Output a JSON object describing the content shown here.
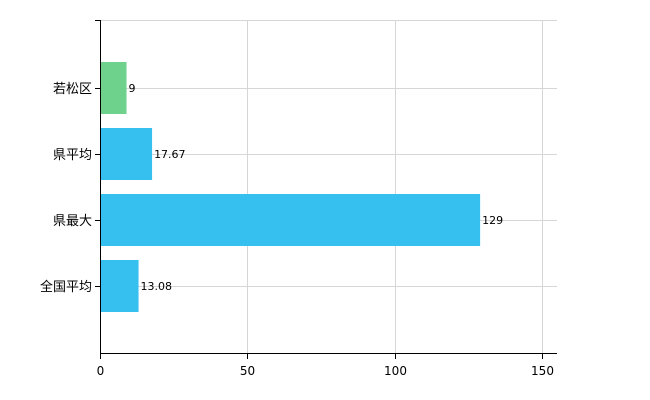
{
  "chart_data": {
    "type": "bar",
    "orientation": "horizontal",
    "categories": [
      "若松区",
      "県平均",
      "県最大",
      "全国平均"
    ],
    "values": [
      9,
      17.67,
      129,
      13.08
    ],
    "value_labels": [
      "9",
      "17.67",
      "129",
      "13.08"
    ],
    "bar_colors": [
      "#6fd28c",
      "#35c0f0",
      "#35c0f0",
      "#35c0f0"
    ],
    "x_ticks": [
      0,
      50,
      100,
      150
    ],
    "x_tick_labels": [
      "0",
      "50",
      "100",
      "150"
    ],
    "xlim": [
      0,
      150
    ],
    "grid": true,
    "legend": false
  }
}
